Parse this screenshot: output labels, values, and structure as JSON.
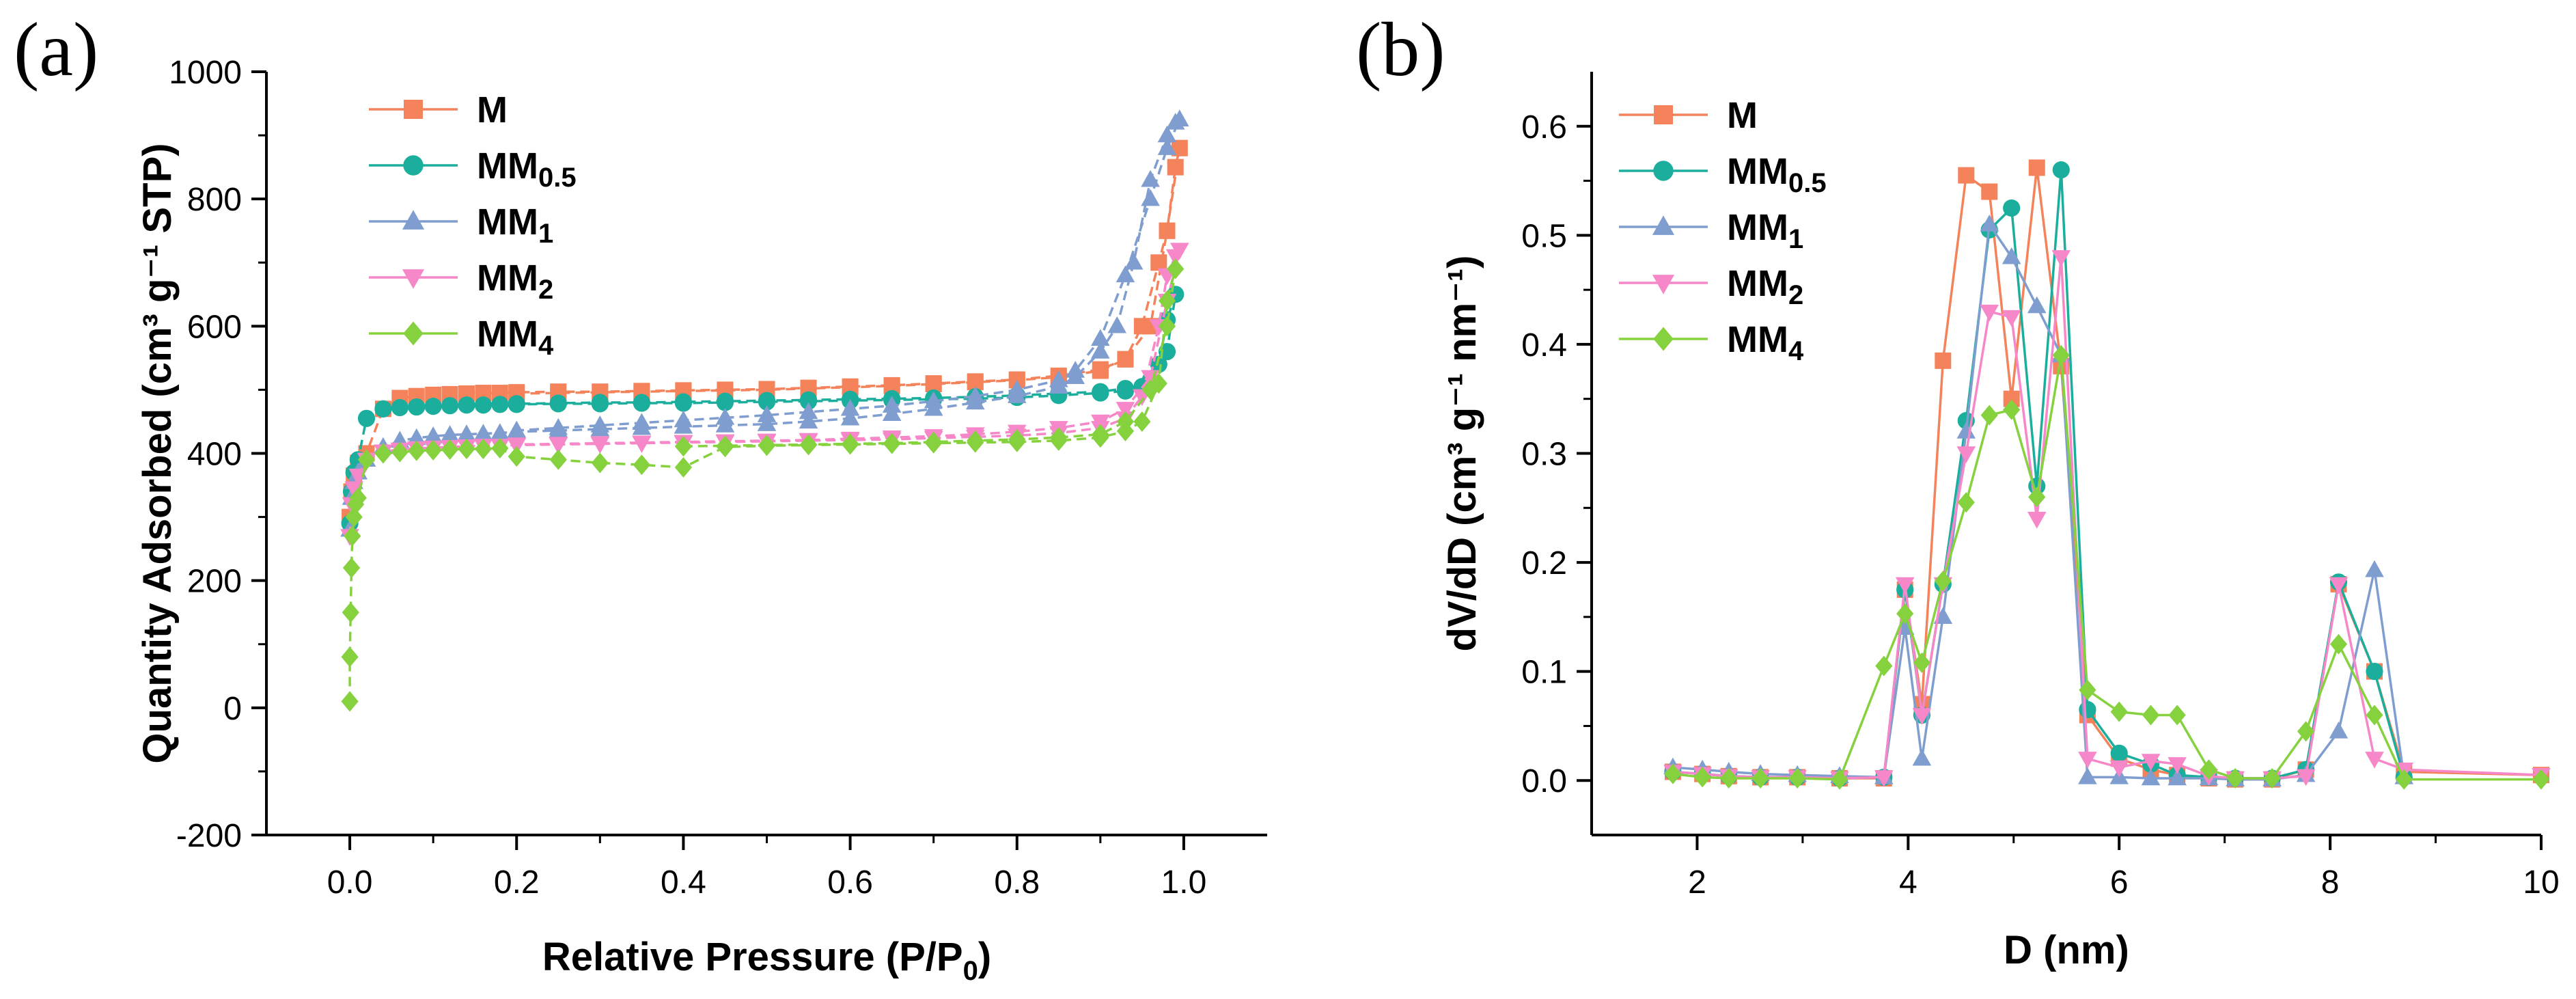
{
  "chart_data": [
    {
      "panel_label": "(a)",
      "type": "line",
      "title": "",
      "xlabel": {
        "main": "Relative Pressure (P/P",
        "sub": "0",
        "tail": ")"
      },
      "ylabel": "Quantity Adsorbed (cm³ g⁻¹ STP)",
      "xlim": [
        -0.1,
        1.1
      ],
      "ylim": [
        -200,
        1000
      ],
      "xticks": [
        0.0,
        0.2,
        0.4,
        0.6,
        0.8,
        1.0
      ],
      "xtick_labels": [
        "0.0",
        "0.2",
        "0.4",
        "0.6",
        "0.8",
        "1.0"
      ],
      "yticks": [
        -200,
        0,
        200,
        400,
        600,
        800,
        1000
      ],
      "ytick_labels": [
        "-200",
        "0",
        "200",
        "400",
        "600",
        "800",
        "1000"
      ],
      "legend_position": "top-left",
      "series": [
        {
          "name": "M",
          "label_main": "M",
          "label_sub": "",
          "color": "#F4825A",
          "marker": "square",
          "x": [
            0.0,
            0.002,
            0.005,
            0.01,
            0.02,
            0.04,
            0.06,
            0.08,
            0.1,
            0.12,
            0.14,
            0.16,
            0.18,
            0.2,
            0.25,
            0.3,
            0.35,
            0.4,
            0.45,
            0.5,
            0.55,
            0.6,
            0.65,
            0.7,
            0.75,
            0.8,
            0.85,
            0.9,
            0.93,
            0.95,
            0.97,
            0.98,
            0.99,
            0.995,
            0.98,
            0.96,
            0.93,
            0.9,
            0.85,
            0.8,
            0.75,
            0.7,
            0.65,
            0.6,
            0.55,
            0.5,
            0.45,
            0.4,
            0.35,
            0.3,
            0.25,
            0.2
          ],
          "y": [
            300,
            340,
            365,
            385,
            400,
            470,
            487,
            490,
            492,
            493,
            494,
            495,
            495,
            496,
            497,
            497,
            498,
            499,
            500,
            501,
            503,
            505,
            507,
            510,
            513,
            516,
            522,
            532,
            548,
            600,
            700,
            750,
            850,
            880,
            750,
            600,
            548,
            530,
            520,
            515,
            512,
            509,
            506,
            504,
            502,
            500,
            499,
            498,
            497,
            496,
            495,
            494
          ]
        },
        {
          "name": "MM0.5",
          "label_main": "MM",
          "label_sub": "0.5",
          "color": "#1BAE9C",
          "marker": "circle",
          "x": [
            0.0,
            0.002,
            0.005,
            0.01,
            0.02,
            0.04,
            0.06,
            0.08,
            0.1,
            0.12,
            0.14,
            0.16,
            0.18,
            0.2,
            0.25,
            0.3,
            0.35,
            0.4,
            0.45,
            0.5,
            0.55,
            0.6,
            0.65,
            0.7,
            0.75,
            0.8,
            0.85,
            0.9,
            0.93,
            0.95,
            0.97,
            0.98,
            0.99,
            0.98,
            0.96,
            0.93,
            0.9,
            0.85,
            0.8,
            0.75,
            0.7,
            0.65,
            0.6,
            0.55,
            0.5,
            0.45,
            0.4,
            0.35,
            0.3,
            0.25,
            0.2
          ],
          "y": [
            290,
            340,
            370,
            390,
            455,
            470,
            472,
            473,
            474,
            475,
            476,
            476,
            477,
            477,
            478,
            478,
            479,
            479,
            480,
            481,
            482,
            483,
            484,
            485,
            486,
            488,
            491,
            495,
            498,
            505,
            540,
            610,
            650,
            560,
            515,
            502,
            497,
            494,
            491,
            489,
            487,
            486,
            485,
            484,
            483,
            482,
            481,
            480,
            480,
            479,
            478
          ]
        },
        {
          "name": "MM1",
          "label_main": "MM",
          "label_sub": "1",
          "color": "#7F9ECF",
          "marker": "triangle-up",
          "x": [
            0.0,
            0.002,
            0.005,
            0.01,
            0.02,
            0.04,
            0.06,
            0.08,
            0.1,
            0.12,
            0.14,
            0.16,
            0.18,
            0.2,
            0.25,
            0.3,
            0.35,
            0.4,
            0.45,
            0.5,
            0.55,
            0.6,
            0.65,
            0.7,
            0.75,
            0.8,
            0.85,
            0.87,
            0.9,
            0.92,
            0.94,
            0.96,
            0.98,
            0.99,
            0.995,
            0.98,
            0.96,
            0.93,
            0.9,
            0.87,
            0.85,
            0.8,
            0.75,
            0.7,
            0.65,
            0.6,
            0.55,
            0.5,
            0.45,
            0.4,
            0.35,
            0.3,
            0.25,
            0.2
          ],
          "y": [
            280,
            330,
            355,
            370,
            390,
            410,
            420,
            424,
            427,
            429,
            430,
            431,
            432,
            434,
            436,
            438,
            440,
            442,
            444,
            446,
            450,
            455,
            462,
            470,
            480,
            490,
            505,
            520,
            560,
            600,
            700,
            830,
            900,
            920,
            925,
            880,
            800,
            680,
            580,
            530,
            515,
            500,
            490,
            482,
            475,
            470,
            465,
            460,
            456,
            452,
            448,
            444,
            440,
            436
          ]
        },
        {
          "name": "MM2",
          "label_main": "MM",
          "label_sub": "2",
          "color": "#F687C8",
          "marker": "triangle-down",
          "x": [
            0.0,
            0.002,
            0.005,
            0.01,
            0.02,
            0.04,
            0.06,
            0.08,
            0.1,
            0.12,
            0.14,
            0.16,
            0.18,
            0.2,
            0.25,
            0.3,
            0.35,
            0.4,
            0.45,
            0.5,
            0.55,
            0.6,
            0.65,
            0.7,
            0.75,
            0.8,
            0.85,
            0.9,
            0.93,
            0.95,
            0.97,
            0.98,
            0.99,
            0.995,
            0.98,
            0.96,
            0.93,
            0.9,
            0.85,
            0.8,
            0.75,
            0.7,
            0.65,
            0.6,
            0.55,
            0.5,
            0.45,
            0.4,
            0.35,
            0.3,
            0.25,
            0.2
          ],
          "y": [
            270,
            320,
            345,
            365,
            390,
            403,
            406,
            408,
            409,
            410,
            411,
            412,
            412,
            413,
            414,
            415,
            416,
            417,
            418,
            419,
            420,
            421,
            422,
            424,
            426,
            428,
            432,
            440,
            455,
            490,
            600,
            680,
            710,
            720,
            640,
            520,
            470,
            450,
            440,
            434,
            430,
            427,
            425,
            423,
            421,
            420,
            419,
            418,
            417,
            416,
            415,
            414
          ]
        },
        {
          "name": "MM4",
          "label_main": "MM",
          "label_sub": "4",
          "color": "#86D13E",
          "marker": "diamond",
          "x": [
            0.0,
            0.0,
            0.001,
            0.002,
            0.003,
            0.005,
            0.007,
            0.01,
            0.02,
            0.04,
            0.06,
            0.08,
            0.1,
            0.12,
            0.14,
            0.16,
            0.18,
            0.2,
            0.25,
            0.3,
            0.35,
            0.4,
            0.45,
            0.5,
            0.55,
            0.6,
            0.65,
            0.7,
            0.75,
            0.8,
            0.85,
            0.9,
            0.93,
            0.95,
            0.97,
            0.98,
            0.99,
            0.98,
            0.96,
            0.93,
            0.9,
            0.85,
            0.8,
            0.75,
            0.7,
            0.65,
            0.6,
            0.55,
            0.5,
            0.45,
            0.4
          ],
          "y": [
            10,
            80,
            150,
            220,
            270,
            300,
            320,
            330,
            390,
            400,
            402,
            404,
            405,
            406,
            407,
            407,
            408,
            395,
            390,
            385,
            382,
            378,
            410,
            412,
            413,
            414,
            415,
            416,
            417,
            418,
            420,
            425,
            435,
            450,
            510,
            640,
            690,
            600,
            500,
            450,
            430,
            425,
            422,
            420,
            418,
            416,
            415,
            414,
            413,
            412,
            411
          ]
        }
      ]
    },
    {
      "panel_label": "(b)",
      "type": "line",
      "title": "",
      "xlabel": {
        "main": "D (nm)"
      },
      "ylabel": "dV/dD (cm³ g⁻¹ nm⁻¹)",
      "xlim": [
        1,
        10
      ],
      "ylim": [
        -0.05,
        0.65
      ],
      "xticks": [
        2,
        4,
        6,
        8,
        10
      ],
      "xtick_labels": [
        "2",
        "4",
        "6",
        "8",
        "10"
      ],
      "yticks": [
        0.0,
        0.1,
        0.2,
        0.3,
        0.4,
        0.5,
        0.6
      ],
      "ytick_labels": [
        "0.0",
        "0.1",
        "0.2",
        "0.3",
        "0.4",
        "0.5",
        "0.6"
      ],
      "legend_position": "top-left",
      "series": [
        {
          "name": "M",
          "label_main": "M",
          "label_sub": "",
          "color": "#F4825A",
          "marker": "square",
          "x": [
            1.77,
            2.05,
            2.3,
            2.6,
            2.95,
            3.35,
            3.77,
            3.97,
            4.13,
            4.33,
            4.55,
            4.77,
            4.98,
            5.22,
            5.45,
            5.7,
            6.0,
            6.3,
            6.55,
            6.85,
            7.1,
            7.45,
            7.77,
            8.08,
            8.42,
            8.7,
            10.0
          ],
          "x_note": "",
          "y": [
            0.008,
            0.006,
            0.004,
            0.003,
            0.003,
            0.002,
            0.002,
            0.175,
            0.07,
            0.385,
            0.555,
            0.54,
            0.35,
            0.562,
            0.38,
            0.06,
            0.02,
            0.01,
            0.005,
            0.002,
            0.001,
            0.001,
            0.01,
            0.18,
            0.1,
            0.008,
            0.005
          ]
        },
        {
          "name": "MM0.5",
          "label_main": "MM",
          "label_sub": "0.5",
          "color": "#1BAE9C",
          "marker": "circle",
          "x": [
            1.77,
            2.05,
            2.3,
            2.6,
            2.95,
            3.35,
            3.77,
            3.97,
            4.13,
            4.33,
            4.55,
            4.77,
            4.98,
            5.22,
            5.45,
            5.7,
            6.0,
            6.3,
            6.55,
            6.85,
            7.1,
            7.45,
            7.77,
            8.08,
            8.42,
            8.7
          ],
          "y": [
            0.008,
            0.006,
            0.004,
            0.003,
            0.003,
            0.002,
            0.003,
            0.175,
            0.06,
            0.18,
            0.33,
            0.505,
            0.525,
            0.27,
            0.56,
            0.065,
            0.025,
            0.015,
            0.005,
            0.003,
            0.002,
            0.002,
            0.01,
            0.182,
            0.1,
            0.003
          ]
        },
        {
          "name": "MM1",
          "label_main": "MM",
          "label_sub": "1",
          "color": "#7F9ECF",
          "marker": "triangle-up",
          "x": [
            1.77,
            2.05,
            2.3,
            2.6,
            2.95,
            3.35,
            3.77,
            3.97,
            4.13,
            4.33,
            4.55,
            4.77,
            4.98,
            5.22,
            5.45,
            5.7,
            6.0,
            6.3,
            6.55,
            6.85,
            7.1,
            7.45,
            7.77,
            8.08,
            8.42,
            8.7
          ],
          "y": [
            0.012,
            0.01,
            0.008,
            0.006,
            0.005,
            0.004,
            0.003,
            0.14,
            0.02,
            0.15,
            0.32,
            0.51,
            0.48,
            0.435,
            0.39,
            0.003,
            0.003,
            0.002,
            0.002,
            0.002,
            0.001,
            0.001,
            0.005,
            0.045,
            0.193,
            0.003
          ]
        },
        {
          "name": "MM2",
          "label_main": "MM",
          "label_sub": "2",
          "color": "#F687C8",
          "marker": "triangle-down",
          "x": [
            1.77,
            2.05,
            2.3,
            2.6,
            2.95,
            3.35,
            3.77,
            3.97,
            4.13,
            4.33,
            4.55,
            4.77,
            4.98,
            5.22,
            5.45,
            5.7,
            6.0,
            6.3,
            6.55,
            6.85,
            7.1,
            7.45,
            7.77,
            8.08,
            8.42,
            8.7,
            10.0
          ],
          "y": [
            0.008,
            0.006,
            0.004,
            0.003,
            0.003,
            0.002,
            0.003,
            0.18,
            0.06,
            0.18,
            0.3,
            0.43,
            0.425,
            0.24,
            0.48,
            0.02,
            0.012,
            0.018,
            0.015,
            0.004,
            0.002,
            0.002,
            0.004,
            0.18,
            0.02,
            0.01,
            0.005
          ]
        },
        {
          "name": "MM4",
          "label_main": "MM",
          "label_sub": "4",
          "color": "#86D13E",
          "marker": "diamond",
          "x": [
            1.77,
            2.05,
            2.3,
            2.6,
            2.95,
            3.35,
            3.77,
            3.97,
            4.13,
            4.33,
            4.55,
            4.77,
            4.98,
            5.22,
            5.45,
            5.7,
            6.0,
            6.3,
            6.55,
            6.85,
            7.1,
            7.45,
            7.77,
            8.08,
            8.42,
            8.7,
            10.0
          ],
          "y": [
            0.006,
            0.003,
            0.002,
            0.002,
            0.002,
            0.001,
            0.105,
            0.153,
            0.108,
            0.183,
            0.255,
            0.335,
            0.34,
            0.26,
            0.39,
            0.083,
            0.063,
            0.06,
            0.06,
            0.01,
            0.002,
            0.002,
            0.045,
            0.125,
            0.06,
            0.001,
            0.001
          ]
        }
      ]
    }
  ]
}
